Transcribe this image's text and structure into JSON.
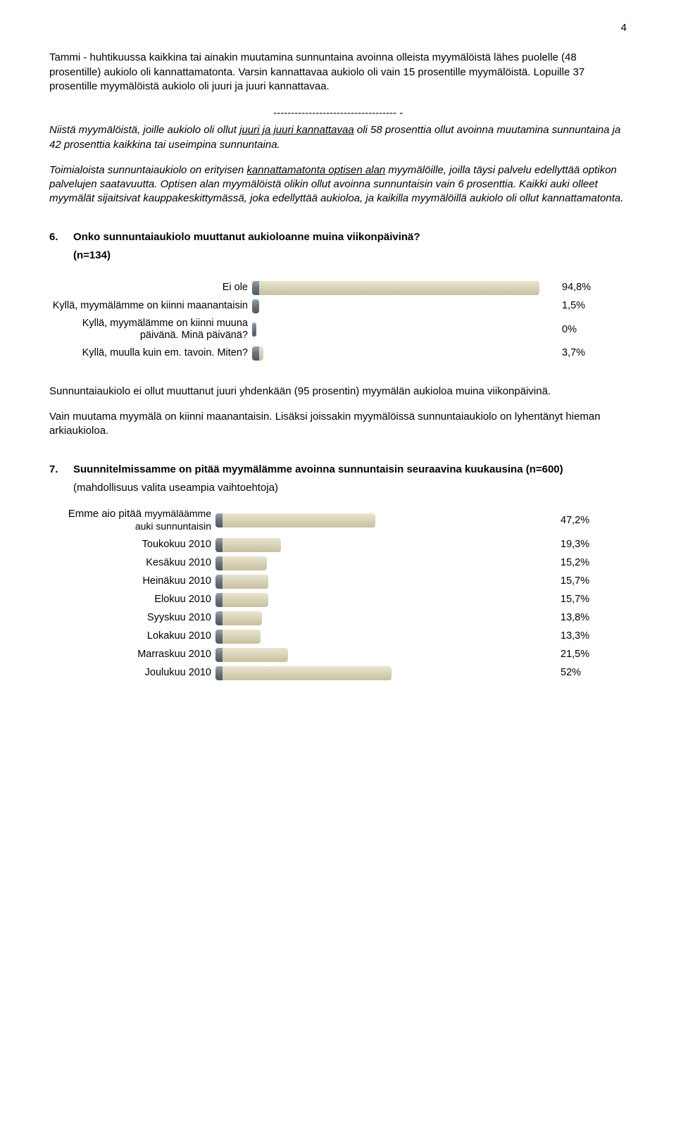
{
  "page_number": "4",
  "para1": "Tammi - huhtikuussa kaikkina tai ainakin muutamina sunnuntaina avoinna olleista myymälöistä lähes puolelle (48 prosentille) aukiolo oli kannattamatonta. Varsin kannattavaa aukiolo oli vain 15 prosentille myymälöistä. Lopuille 37 prosentille myymälöistä aukiolo oli juuri ja juuri kannattavaa.",
  "divider": "----------------------------------- -",
  "para2_a": "Niistä myymälöistä, joille aukiolo oli ollut ",
  "para2_u": "juuri ja juuri kannattavaa",
  "para2_b": " oli 58 prosenttia ollut avoinna muutamina sunnuntaina ja 42 prosenttia kaikkina tai useimpina sunnuntaina.",
  "para3_a": "Toimialoista sunnuntaiaukiolo on erityisen ",
  "para3_u": "kannattamatonta optisen alan",
  "para3_b": " myymälöille, joilla täysi palvelu edellyttää optikon palvelujen saatavuutta. Optisen alan myymälöistä olikin ollut avoinna sunnuntaisin vain 6 prosenttia. Kaikki auki olleet myymälät sijaitsivat kauppakeskittymässä, joka edellyttää aukioloa, ja kaikilla myymälöillä aukiolo oli ollut kannattamatonta.",
  "q6": {
    "num": "6.",
    "title": "Onko sunnuntaiaukiolo muuttanut aukioloanne muina viikonpäivinä?",
    "sub": "(n=134)"
  },
  "chart1": {
    "label_width": 288,
    "bar_area_width": 430,
    "max_pct": 100,
    "rows": [
      {
        "label": "Ei ole",
        "pct": 94.8,
        "val": "94,8%"
      },
      {
        "label": "Kyllä, myymälämme on kiinni maanantaisin",
        "pct": 1.5,
        "val": "1,5%"
      },
      {
        "label": "Kyllä, myymälämme on kiinni muuna päivänä. Minä päivänä?",
        "pct": 0,
        "val": "0%"
      },
      {
        "label": "Kyllä, muulla kuin em. tavoin. Miten?",
        "pct": 3.7,
        "val": "3,7%"
      }
    ]
  },
  "para4": "Sunnuntaiaukiolo ei ollut muuttanut juuri yhdenkään (95 prosentin) myymälän aukioloa muina viikonpäivinä.",
  "para5": "Vain muutama myymälä on kiinni maanantaisin. Lisäksi joissakin myymälöissä sunnuntaiaukiolo on lyhentänyt hieman arkiaukioloa.",
  "q7": {
    "num": "7.",
    "title": "Suunnitelmissamme on pitää myymälämme avoinna sunnuntaisin seuraavina kuukausina (n=600)"
  },
  "q7_note": "(mahdollisuus valita useampia vaihtoehtoja)",
  "chart2": {
    "label_width": 236,
    "bar_area_width": 480,
    "max_pct": 100,
    "rows": [
      {
        "label_a": "Emme aio pitää ",
        "label_b": "myymäläämme auki sunnuntaisin",
        "pct": 47.2,
        "val": "47,2%"
      },
      {
        "label": "Toukokuu 2010",
        "pct": 19.3,
        "val": "19,3%"
      },
      {
        "label": "Kesäkuu 2010",
        "pct": 15.2,
        "val": "15,2%"
      },
      {
        "label": "Heinäkuu 2010",
        "pct": 15.7,
        "val": "15,7%"
      },
      {
        "label": "Elokuu 2010",
        "pct": 15.7,
        "val": "15,7%"
      },
      {
        "label": "Syyskuu 2010",
        "pct": 13.8,
        "val": "13,8%"
      },
      {
        "label": "Lokakuu 2010",
        "pct": 13.3,
        "val": "13,3%"
      },
      {
        "label": "Marraskuu 2010",
        "pct": 21.5,
        "val": "21,5%"
      },
      {
        "label": "Joulukuu 2010",
        "pct": 52,
        "val": "52%"
      }
    ]
  }
}
